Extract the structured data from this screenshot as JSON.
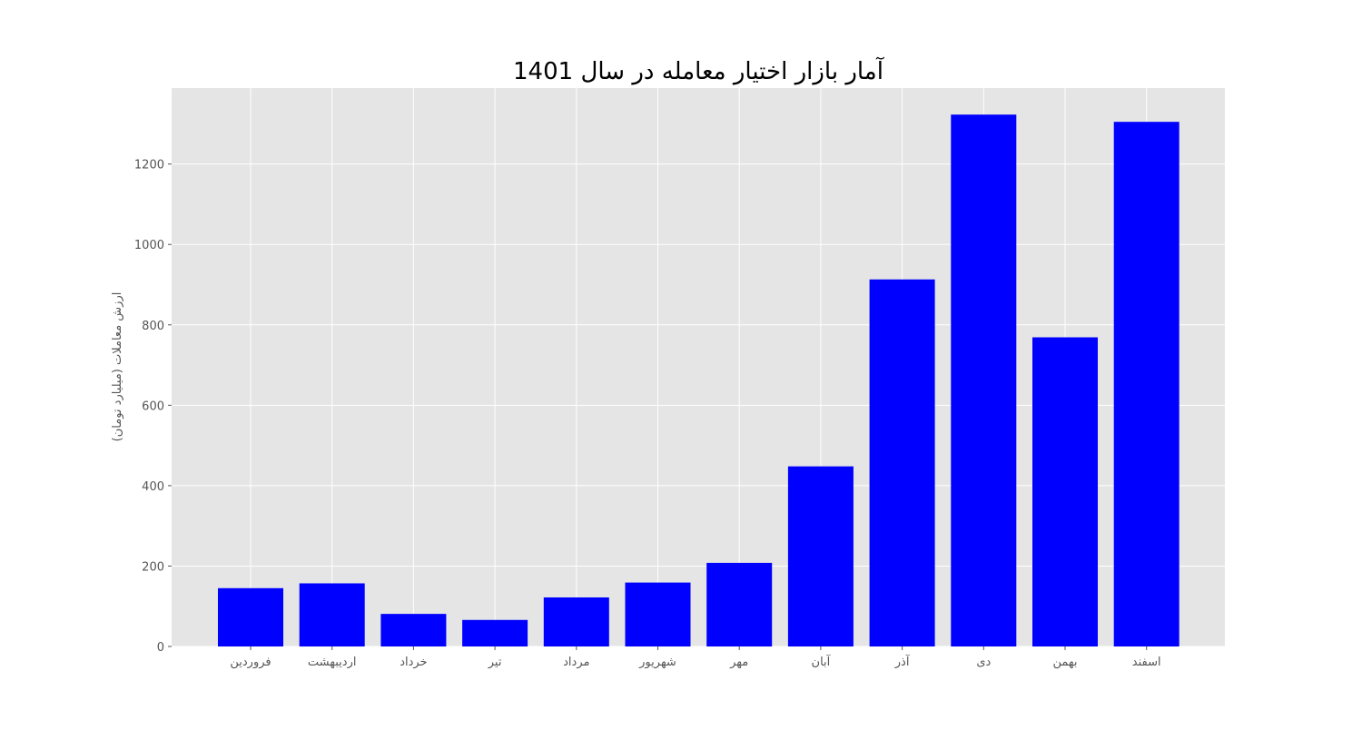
{
  "chart_data": {
    "type": "bar",
    "title": "آمار بازار اختیار معامله در سال 1401",
    "xlabel": "",
    "ylabel": "ارزش معاملات (میلیارد تومان)",
    "categories": [
      "فروردین",
      "اردیبهشت",
      "خرداد",
      "تیر",
      "مرداد",
      "شهریور",
      "مهر",
      "آبان",
      "آذر",
      "دی",
      "بهمن",
      "اسفند"
    ],
    "values": [
      145,
      157,
      81,
      66,
      122,
      159,
      208,
      448,
      913,
      1323,
      769,
      1305
    ],
    "yticks": [
      0,
      200,
      400,
      600,
      800,
      1000,
      1200
    ],
    "ylim": [
      0,
      1389
    ],
    "grid": true,
    "legend": "none",
    "colors": {
      "bar": "#0000ff",
      "plot_background": "#e5e5e5",
      "grid": "#ffffff"
    }
  }
}
